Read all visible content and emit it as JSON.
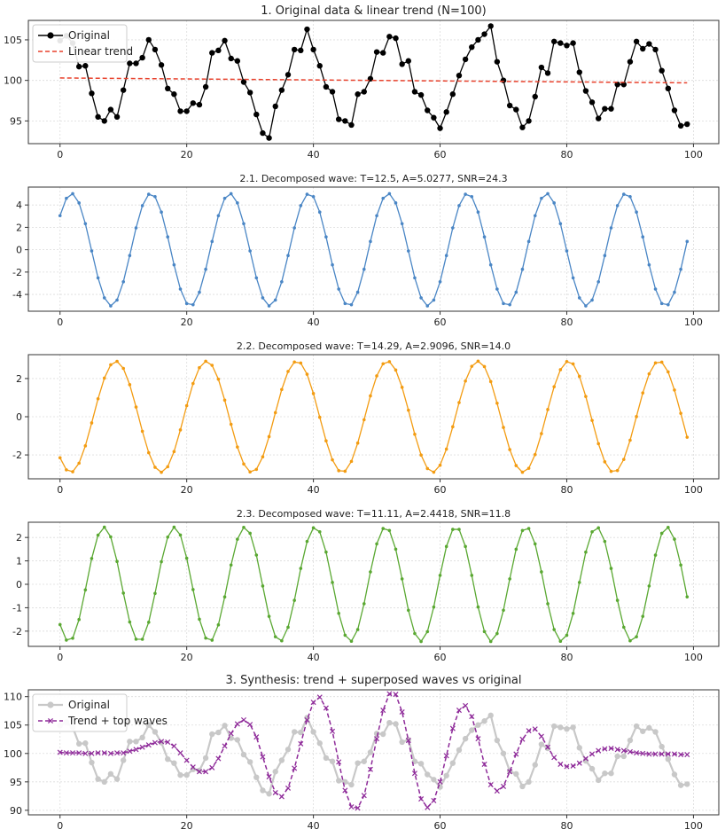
{
  "chart_data": [
    {
      "type": "line",
      "title": "1. Original data & linear trend (N=100)",
      "xlabel": "",
      "ylabel": "",
      "xlim": [
        -5,
        104
      ],
      "ylim": [
        92.2,
        107.4
      ],
      "xticks": [
        0,
        20,
        40,
        60,
        80,
        100
      ],
      "yticks": [
        95,
        100,
        105
      ],
      "grid": true,
      "legend": "top-left",
      "series": [
        {
          "name": "Original",
          "color": "#000000",
          "marker": "circle",
          "y": [
            104.9,
            105.5,
            104.6,
            101.7,
            101.8,
            98.4,
            95.5,
            95.0,
            96.4,
            95.5,
            98.8,
            102.1,
            102.1,
            102.8,
            105.0,
            103.8,
            101.9,
            99.0,
            98.3,
            96.2,
            96.2,
            97.2,
            97.0,
            99.2,
            103.4,
            103.7,
            104.9,
            102.7,
            102.4,
            99.8,
            98.5,
            95.8,
            93.5,
            92.9,
            96.8,
            98.8,
            100.7,
            103.8,
            103.7,
            106.3,
            103.8,
            101.8,
            99.2,
            98.6,
            95.2,
            95.0,
            94.5,
            98.3,
            98.6,
            100.2,
            103.5,
            103.4,
            105.4,
            105.2,
            102.0,
            102.4,
            98.6,
            98.2,
            96.3,
            95.4,
            94.1,
            96.1,
            98.3,
            100.6,
            102.6,
            104.1,
            105.0,
            105.7,
            106.7,
            102.3,
            100.0,
            96.9,
            96.4,
            94.2,
            95.0,
            98.0,
            101.6,
            100.9,
            104.8,
            104.6,
            104.3,
            104.6,
            101.0,
            98.7,
            97.3,
            95.3,
            96.5,
            96.5,
            99.5,
            99.5,
            102.3,
            104.8,
            103.9,
            104.5,
            103.8,
            101.2,
            99.0,
            96.3,
            94.4,
            94.6
          ]
        },
        {
          "name": "Linear trend",
          "color": "#e8412c",
          "style": "dashed",
          "x": [
            0,
            99
          ],
          "y": [
            100.3,
            99.7
          ]
        }
      ]
    },
    {
      "type": "line",
      "title": "2.1. Decomposed wave: T=12.5, A=5.0277, SNR=24.3",
      "xlabel": "",
      "ylabel": "",
      "xlim": [
        -5,
        104
      ],
      "ylim": [
        -5.5,
        5.6
      ],
      "xticks": [
        0,
        20,
        40,
        60,
        80,
        100
      ],
      "yticks": [
        -4,
        -2,
        0,
        2,
        4
      ],
      "grid": true,
      "series": [
        {
          "name": "",
          "color": "#4a86c5",
          "marker": "dot",
          "period": 12.5,
          "amplitude": 5.0277,
          "phase": 0.65,
          "start": 4.06,
          "end": 2.04
        }
      ]
    },
    {
      "type": "line",
      "title": "2.2. Decomposed wave: T=14.29, A=2.9096, SNR=14.0",
      "xlabel": "",
      "ylabel": "",
      "xlim": [
        -5,
        104
      ],
      "ylim": [
        -3.25,
        3.25
      ],
      "xticks": [
        0,
        20,
        40,
        60,
        80,
        100
      ],
      "yticks": [
        -2,
        0,
        2
      ],
      "grid": true,
      "series": [
        {
          "name": "",
          "color": "#f39c12",
          "marker": "dot",
          "period": 14.29,
          "amplitude": 2.9096,
          "phase": -2.31,
          "start": -2.2,
          "end": -1.2
        }
      ]
    },
    {
      "type": "line",
      "title": "2.3. Decomposed wave: T=11.11, A=2.4418, SNR=11.8",
      "xlabel": "",
      "ylabel": "",
      "xlim": [
        -5,
        104
      ],
      "ylim": [
        -2.65,
        2.65
      ],
      "xticks": [
        0,
        20,
        40,
        60,
        80,
        100
      ],
      "yticks": [
        -2,
        -1,
        0,
        1,
        2
      ],
      "grid": true,
      "series": [
        {
          "name": "",
          "color": "#5aa832",
          "marker": "dot",
          "period": 11.11,
          "amplitude": 2.4418,
          "phase": -2.36,
          "start": -1.9,
          "end": -0.9
        }
      ]
    },
    {
      "type": "line",
      "title": "3. Synthesis: trend + superposed waves vs original",
      "xlabel": "",
      "ylabel": "",
      "xlim": [
        -5,
        104
      ],
      "ylim": [
        89.2,
        111.2
      ],
      "xticks": [
        0,
        20,
        40,
        60,
        80,
        100
      ],
      "yticks": [
        90,
        95,
        100,
        105,
        110
      ],
      "grid": true,
      "legend": "top-left",
      "series": [
        {
          "name": "Original",
          "color": "#c8c8c8",
          "marker": "circle",
          "ref": "original"
        },
        {
          "name": "Trend + top waves",
          "color": "#8e2a99",
          "marker": "x",
          "style": "dashed",
          "y": [
            100.2,
            100.1,
            100.1,
            100.1,
            100.0,
            100.0,
            100.1,
            100.1,
            100.0,
            100.1,
            100.1,
            100.4,
            100.7,
            101.1,
            101.5,
            101.9,
            102.1,
            102.0,
            101.3,
            100.1,
            98.8,
            97.6,
            96.8,
            96.8,
            97.5,
            99.1,
            101.3,
            103.5,
            105.2,
            105.9,
            105.1,
            102.9,
            99.4,
            95.9,
            93.1,
            92.4,
            93.9,
            97.4,
            101.7,
            105.9,
            109.0,
            109.9,
            108.0,
            103.9,
            98.5,
            93.5,
            90.6,
            90.4,
            92.6,
            97.2,
            102.6,
            107.6,
            110.5,
            110.4,
            107.3,
            102.3,
            96.5,
            92.0,
            90.5,
            91.7,
            95.0,
            99.6,
            104.4,
            107.6,
            108.4,
            106.5,
            102.6,
            98.1,
            94.5,
            93.4,
            94.2,
            96.8,
            99.9,
            102.5,
            104.0,
            104.3,
            103.0,
            101.1,
            99.3,
            98.1,
            97.7,
            97.8,
            98.3,
            99.1,
            99.9,
            100.5,
            100.8,
            100.9,
            100.7,
            100.5,
            100.3,
            100.1,
            100.0,
            99.9,
            99.9,
            99.9,
            99.9,
            99.9,
            99.8,
            99.8
          ]
        }
      ]
    }
  ]
}
